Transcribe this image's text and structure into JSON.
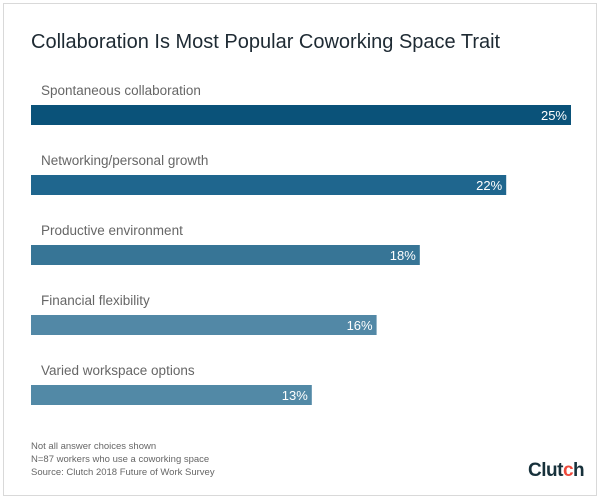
{
  "chart_data": {
    "type": "bar",
    "orientation": "horizontal",
    "title": "Collaboration Is Most Popular Coworking Space Trait",
    "categories": [
      "Spontaneous collaboration",
      "Networking/personal growth",
      "Productive environment",
      "Financial flexibility",
      "Varied workspace options"
    ],
    "values": [
      25,
      22,
      18,
      16,
      13
    ],
    "data_labels": [
      "25%",
      "22%",
      "18%",
      "16%",
      "13%"
    ],
    "unit": "%",
    "colors": [
      "#0a5279",
      "#1f668e",
      "#377596",
      "#5288a6",
      "#5289a6"
    ],
    "grid": false,
    "xlim": [
      0,
      25
    ]
  },
  "footer": {
    "notes": [
      "Not all answer choices shown",
      "N=87 workers who use a coworking space",
      "Source: Clutch 2018 Future of Work Survey"
    ],
    "logo": "Clutch"
  }
}
